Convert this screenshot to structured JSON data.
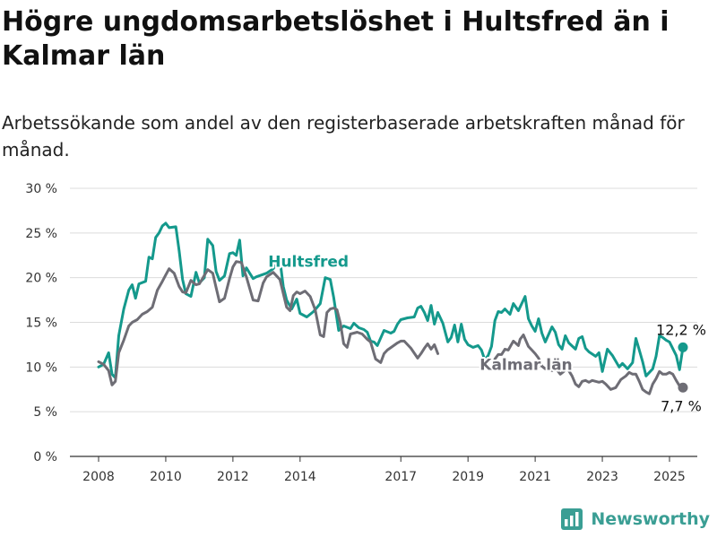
{
  "title": "Högre ungdomsarbetslöshet i Hultsfred än i Kalmar län",
  "subtitle": "Arbetssökande som andel av den registerbaserade arbetskraften månad för månad.",
  "brand": "Newsworthy",
  "colors": {
    "hultsfred": "#14998c",
    "kalmar": "#6e6d75",
    "grid": "#dcdcdc",
    "axis": "#333333",
    "brand": "#3a9e94"
  },
  "icons": {
    "brand_logo": "bar-chart-logo-icon"
  },
  "chart_data": {
    "type": "line",
    "x_unit": "year",
    "ylim": [
      0,
      30
    ],
    "y_ticks": [
      {
        "value": 0,
        "label": "0 %"
      },
      {
        "value": 5,
        "label": "5 %"
      },
      {
        "value": 10,
        "label": "10 %"
      },
      {
        "value": 15,
        "label": "15 %"
      },
      {
        "value": 20,
        "label": "20 %"
      },
      {
        "value": 25,
        "label": "25 %"
      },
      {
        "value": 30,
        "label": "30 %"
      }
    ],
    "x_ticks": [
      {
        "value": 2008,
        "label": "2008"
      },
      {
        "value": 2010,
        "label": "2010"
      },
      {
        "value": 2012,
        "label": "2012"
      },
      {
        "value": 2014,
        "label": "2014"
      },
      {
        "value": 2017,
        "label": "2017"
      },
      {
        "value": 2019,
        "label": "2019"
      },
      {
        "value": 2021,
        "label": "2021"
      },
      {
        "value": 2023,
        "label": "2023"
      },
      {
        "value": 2025,
        "label": "2025"
      }
    ],
    "grid": true,
    "series": [
      {
        "name": "Hultsfred",
        "color": "#14998c",
        "end_label": "12,2 %",
        "points": [
          [
            2008.0,
            10.0
          ],
          [
            2008.15,
            10.3
          ],
          [
            2008.3,
            11.6
          ],
          [
            2008.4,
            9.2
          ],
          [
            2008.5,
            8.8
          ],
          [
            2008.6,
            13.5
          ],
          [
            2008.75,
            16.5
          ],
          [
            2008.9,
            18.6
          ],
          [
            2009.0,
            19.2
          ],
          [
            2009.1,
            17.7
          ],
          [
            2009.2,
            19.3
          ],
          [
            2009.4,
            19.6
          ],
          [
            2009.5,
            22.3
          ],
          [
            2009.6,
            22.1
          ],
          [
            2009.7,
            24.5
          ],
          [
            2009.8,
            25.0
          ],
          [
            2009.9,
            25.8
          ],
          [
            2010.0,
            26.1
          ],
          [
            2010.1,
            25.6
          ],
          [
            2010.3,
            25.7
          ],
          [
            2010.4,
            23.0
          ],
          [
            2010.5,
            19.8
          ],
          [
            2010.6,
            18.2
          ],
          [
            2010.75,
            17.9
          ],
          [
            2010.9,
            20.6
          ],
          [
            2011.0,
            19.4
          ],
          [
            2011.15,
            20.0
          ],
          [
            2011.25,
            24.3
          ],
          [
            2011.4,
            23.6
          ],
          [
            2011.5,
            20.7
          ],
          [
            2011.6,
            19.7
          ],
          [
            2011.75,
            20.2
          ],
          [
            2011.9,
            22.7
          ],
          [
            2012.0,
            22.8
          ],
          [
            2012.1,
            22.5
          ],
          [
            2012.2,
            24.2
          ],
          [
            2012.3,
            20.2
          ],
          [
            2012.4,
            21.1
          ],
          [
            2012.5,
            20.5
          ],
          [
            2012.6,
            19.9
          ],
          [
            2012.7,
            20.1
          ],
          [
            2013.0,
            20.5
          ],
          [
            2013.2,
            21.0
          ],
          [
            2013.4,
            22.0
          ],
          [
            2013.5,
            19.0
          ],
          [
            2013.6,
            17.5
          ],
          [
            2013.75,
            16.5
          ],
          [
            2013.9,
            17.6
          ],
          [
            2014.0,
            16.0
          ],
          [
            2014.2,
            15.6
          ],
          [
            2014.4,
            16.2
          ],
          [
            2014.6,
            17.1
          ],
          [
            2014.75,
            20.0
          ],
          [
            2014.9,
            19.8
          ],
          [
            2015.0,
            17.8
          ],
          [
            2015.15,
            14.1
          ],
          [
            2015.3,
            14.6
          ],
          [
            2015.5,
            14.3
          ],
          [
            2015.6,
            14.9
          ],
          [
            2015.75,
            14.4
          ],
          [
            2015.9,
            14.2
          ],
          [
            2016.0,
            13.9
          ],
          [
            2016.1,
            12.9
          ],
          [
            2016.2,
            12.8
          ],
          [
            2016.3,
            12.4
          ],
          [
            2016.5,
            14.1
          ],
          [
            2016.7,
            13.8
          ],
          [
            2016.8,
            14.0
          ],
          [
            2016.9,
            14.8
          ],
          [
            2017.0,
            15.3
          ],
          [
            2017.2,
            15.5
          ],
          [
            2017.4,
            15.6
          ],
          [
            2017.5,
            16.6
          ],
          [
            2017.6,
            16.8
          ],
          [
            2017.7,
            16.1
          ],
          [
            2017.8,
            15.2
          ],
          [
            2017.9,
            16.9
          ],
          [
            2018.0,
            14.8
          ],
          [
            2018.1,
            16.1
          ],
          [
            2018.25,
            14.9
          ],
          [
            2018.4,
            12.8
          ],
          [
            2018.5,
            13.3
          ],
          [
            2018.6,
            14.7
          ],
          [
            2018.7,
            12.8
          ],
          [
            2018.8,
            14.8
          ],
          [
            2018.9,
            13.1
          ],
          [
            2019.0,
            12.5
          ],
          [
            2019.15,
            12.2
          ],
          [
            2019.3,
            12.4
          ],
          [
            2019.4,
            11.9
          ],
          [
            2019.5,
            10.8
          ],
          [
            2019.6,
            11.3
          ],
          [
            2019.7,
            12.3
          ],
          [
            2019.8,
            15.2
          ],
          [
            2019.9,
            16.2
          ],
          [
            2020.0,
            16.1
          ],
          [
            2020.1,
            16.5
          ],
          [
            2020.25,
            15.9
          ],
          [
            2020.35,
            17.1
          ],
          [
            2020.5,
            16.3
          ],
          [
            2020.6,
            17.1
          ],
          [
            2020.7,
            17.9
          ],
          [
            2020.8,
            15.4
          ],
          [
            2020.9,
            14.6
          ],
          [
            2021.0,
            14.0
          ],
          [
            2021.1,
            15.4
          ],
          [
            2021.2,
            13.8
          ],
          [
            2021.3,
            12.8
          ],
          [
            2021.5,
            14.5
          ],
          [
            2021.6,
            13.9
          ],
          [
            2021.7,
            12.5
          ],
          [
            2021.8,
            12.0
          ],
          [
            2021.9,
            13.5
          ],
          [
            2022.0,
            12.7
          ],
          [
            2022.2,
            12.0
          ],
          [
            2022.3,
            13.2
          ],
          [
            2022.4,
            13.4
          ],
          [
            2022.5,
            12.1
          ],
          [
            2022.6,
            11.7
          ],
          [
            2022.8,
            11.2
          ],
          [
            2022.9,
            11.6
          ],
          [
            2023.0,
            9.5
          ],
          [
            2023.15,
            12.0
          ],
          [
            2023.3,
            11.3
          ],
          [
            2023.5,
            10.0
          ],
          [
            2023.6,
            10.4
          ],
          [
            2023.75,
            9.8
          ],
          [
            2023.9,
            10.5
          ],
          [
            2024.0,
            13.2
          ],
          [
            2024.1,
            11.9
          ],
          [
            2024.2,
            10.6
          ],
          [
            2024.3,
            9.0
          ],
          [
            2024.5,
            9.8
          ],
          [
            2024.6,
            11.2
          ],
          [
            2024.7,
            13.5
          ],
          [
            2024.8,
            13.3
          ],
          [
            2024.9,
            13.0
          ],
          [
            2025.0,
            12.8
          ],
          [
            2025.2,
            11.3
          ],
          [
            2025.3,
            9.7
          ],
          [
            2025.4,
            12.2
          ]
        ]
      },
      {
        "name": "Kalmar län",
        "color": "#6e6d75",
        "end_label": "7,7 %",
        "points": [
          [
            2008.0,
            10.6
          ],
          [
            2008.15,
            10.3
          ],
          [
            2008.3,
            9.6
          ],
          [
            2008.4,
            8.0
          ],
          [
            2008.5,
            8.4
          ],
          [
            2008.6,
            11.6
          ],
          [
            2008.75,
            13.0
          ],
          [
            2008.9,
            14.6
          ],
          [
            2009.0,
            15.0
          ],
          [
            2009.15,
            15.3
          ],
          [
            2009.3,
            15.9
          ],
          [
            2009.45,
            16.2
          ],
          [
            2009.6,
            16.7
          ],
          [
            2009.75,
            18.6
          ],
          [
            2009.9,
            19.6
          ],
          [
            2010.0,
            20.3
          ],
          [
            2010.1,
            21.0
          ],
          [
            2010.25,
            20.5
          ],
          [
            2010.4,
            19.0
          ],
          [
            2010.5,
            18.4
          ],
          [
            2010.6,
            18.3
          ],
          [
            2010.75,
            19.7
          ],
          [
            2010.9,
            19.2
          ],
          [
            2011.0,
            19.3
          ],
          [
            2011.25,
            20.9
          ],
          [
            2011.4,
            20.5
          ],
          [
            2011.5,
            18.9
          ],
          [
            2011.6,
            17.3
          ],
          [
            2011.75,
            17.7
          ],
          [
            2011.9,
            19.9
          ],
          [
            2012.0,
            21.2
          ],
          [
            2012.1,
            21.8
          ],
          [
            2012.25,
            21.7
          ],
          [
            2012.4,
            20.1
          ],
          [
            2012.5,
            18.8
          ],
          [
            2012.6,
            17.5
          ],
          [
            2012.75,
            17.4
          ],
          [
            2012.9,
            19.4
          ],
          [
            2013.0,
            20.1
          ],
          [
            2013.2,
            20.6
          ],
          [
            2013.4,
            19.8
          ],
          [
            2013.6,
            16.7
          ],
          [
            2013.7,
            16.3
          ],
          [
            2013.8,
            18.0
          ],
          [
            2013.9,
            18.4
          ],
          [
            2014.0,
            18.2
          ],
          [
            2014.15,
            18.5
          ],
          [
            2014.3,
            17.9
          ],
          [
            2014.45,
            16.4
          ],
          [
            2014.6,
            13.6
          ],
          [
            2014.7,
            13.4
          ],
          [
            2014.8,
            16.1
          ],
          [
            2014.9,
            16.5
          ],
          [
            2015.0,
            16.6
          ],
          [
            2015.1,
            16.4
          ],
          [
            2015.2,
            14.9
          ],
          [
            2015.3,
            12.6
          ],
          [
            2015.4,
            12.2
          ],
          [
            2015.5,
            13.7
          ],
          [
            2015.6,
            13.8
          ],
          [
            2015.7,
            13.9
          ],
          [
            2015.85,
            13.7
          ],
          [
            2016.0,
            13.1
          ],
          [
            2016.1,
            12.8
          ],
          [
            2016.25,
            10.9
          ],
          [
            2016.4,
            10.5
          ],
          [
            2016.5,
            11.5
          ],
          [
            2016.6,
            11.9
          ],
          [
            2016.75,
            12.3
          ],
          [
            2016.9,
            12.7
          ],
          [
            2017.0,
            12.9
          ],
          [
            2017.1,
            12.9
          ],
          [
            2017.3,
            12.1
          ],
          [
            2017.5,
            11.0
          ],
          [
            2017.6,
            11.5
          ],
          [
            2017.7,
            12.1
          ],
          [
            2017.8,
            12.6
          ],
          [
            2017.9,
            12.0
          ],
          [
            2018.0,
            12.5
          ],
          [
            2018.1,
            11.5
          ],
          [
            2019.8,
            10.9
          ],
          [
            2019.9,
            11.4
          ],
          [
            2020.0,
            11.4
          ],
          [
            2020.1,
            12.0
          ],
          [
            2020.2,
            11.9
          ],
          [
            2020.35,
            12.9
          ],
          [
            2020.5,
            12.4
          ],
          [
            2020.55,
            13.1
          ],
          [
            2020.65,
            13.6
          ],
          [
            2020.8,
            12.3
          ],
          [
            2020.9,
            11.9
          ],
          [
            2021.0,
            11.5
          ],
          [
            2021.1,
            11.0
          ],
          [
            2021.2,
            10.1
          ],
          [
            2021.3,
            9.8
          ],
          [
            2021.5,
            9.6
          ],
          [
            2021.6,
            9.9
          ],
          [
            2021.75,
            9.2
          ],
          [
            2021.85,
            9.5
          ],
          [
            2021.95,
            9.9
          ],
          [
            2022.1,
            9.0
          ],
          [
            2022.2,
            8.1
          ],
          [
            2022.3,
            7.8
          ],
          [
            2022.4,
            8.4
          ],
          [
            2022.5,
            8.5
          ],
          [
            2022.6,
            8.3
          ],
          [
            2022.7,
            8.5
          ],
          [
            2022.9,
            8.3
          ],
          [
            2023.0,
            8.4
          ],
          [
            2023.1,
            8.1
          ],
          [
            2023.25,
            7.5
          ],
          [
            2023.4,
            7.7
          ],
          [
            2023.55,
            8.6
          ],
          [
            2023.7,
            9.0
          ],
          [
            2023.8,
            9.4
          ],
          [
            2023.9,
            9.2
          ],
          [
            2024.0,
            9.2
          ],
          [
            2024.1,
            8.4
          ],
          [
            2024.2,
            7.5
          ],
          [
            2024.3,
            7.2
          ],
          [
            2024.4,
            7.0
          ],
          [
            2024.5,
            8.1
          ],
          [
            2024.6,
            8.7
          ],
          [
            2024.7,
            9.5
          ],
          [
            2024.8,
            9.2
          ],
          [
            2024.9,
            9.2
          ],
          [
            2025.0,
            9.4
          ],
          [
            2025.1,
            9.2
          ],
          [
            2025.2,
            8.5
          ],
          [
            2025.3,
            7.9
          ],
          [
            2025.4,
            7.7
          ]
        ]
      }
    ],
    "annotations": [
      {
        "text": "Hultsfred",
        "series": "Hultsfred",
        "x": 2013.05,
        "y": 21.2
      },
      {
        "text": "Kalmar län",
        "series": "Kalmar län",
        "x": 2019.35,
        "y": 9.7
      }
    ]
  }
}
